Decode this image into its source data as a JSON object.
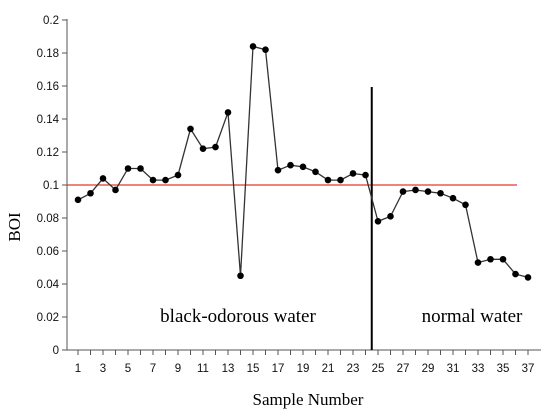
{
  "chart_data": {
    "type": "line",
    "title": "",
    "xlabel": "Sample Number",
    "ylabel": "BOI",
    "x": [
      1,
      2,
      3,
      4,
      5,
      6,
      7,
      8,
      9,
      10,
      11,
      12,
      13,
      14,
      15,
      16,
      17,
      18,
      19,
      20,
      21,
      22,
      23,
      24,
      25,
      26,
      27,
      28,
      29,
      30,
      31,
      32,
      33,
      34,
      35,
      36,
      37
    ],
    "xticks": [
      1,
      3,
      5,
      7,
      9,
      11,
      13,
      15,
      17,
      19,
      21,
      23,
      25,
      27,
      29,
      31,
      33,
      35,
      37
    ],
    "xlim": [
      0.5,
      37.5
    ],
    "ylim": [
      0,
      0.2
    ],
    "yticks": [
      "0",
      "0.02",
      "0.04",
      "0.06",
      "0.08",
      "0.1",
      "0.12",
      "0.14",
      "0.16",
      "0.18",
      "0.2"
    ],
    "series": [
      {
        "values": [
          0.091,
          0.095,
          0.104,
          0.097,
          0.11,
          0.11,
          0.103,
          0.103,
          0.106,
          0.134,
          0.122,
          0.123,
          0.144,
          0.045,
          0.184,
          0.182,
          0.109,
          0.112,
          0.111,
          0.108,
          0.103,
          0.103,
          0.107,
          0.106,
          0.078,
          0.081,
          0.096,
          0.097,
          0.096,
          0.095,
          0.092,
          0.088,
          0.053,
          0.055,
          0.055,
          0.046,
          0.044
        ],
        "color": "#333333"
      }
    ],
    "threshold_line": {
      "value": 0.1,
      "color": "#e8382e"
    },
    "divider_line": {
      "x": 24.5,
      "color": "#000000"
    },
    "region_labels": {
      "left": "black-odorous water",
      "right": "normal water"
    },
    "grid": false
  }
}
